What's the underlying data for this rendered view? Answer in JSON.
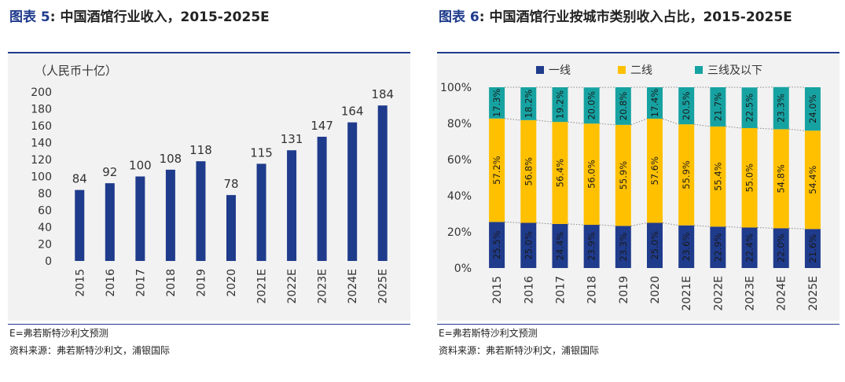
{
  "figures": {
    "left": {
      "label": "图表 5",
      "colon": ":",
      "title": "中国酒馆行业收入，2015-2025E",
      "note": "E=弗若斯特沙利文预测",
      "source": "资料来源：弗若斯特沙利文，浦银国际"
    },
    "right": {
      "label": "图表 6",
      "colon": ":",
      "title": "中国酒馆行业按城市类别收入占比，2015-2025E",
      "note": "E=弗若斯特沙利文预测",
      "source": "资料来源：弗若斯特沙利文，浦银国际"
    }
  },
  "chart_data": [
    {
      "type": "bar",
      "unit_label": "（人民币十亿）",
      "categories": [
        "2015",
        "2016",
        "2017",
        "2018",
        "2019",
        "2020",
        "2021E",
        "2022E",
        "2023E",
        "2024E",
        "2025E"
      ],
      "values": [
        84,
        92,
        100,
        108,
        118,
        78,
        115,
        131,
        147,
        164,
        184
      ],
      "ylim": [
        0,
        200
      ],
      "yticks": [
        0,
        20,
        40,
        60,
        80,
        100,
        120,
        140,
        160,
        180,
        200
      ],
      "color": "#1f3b8c",
      "grid": false,
      "data_labels": true
    },
    {
      "type": "bar",
      "stacked": true,
      "categories": [
        "2015",
        "2016",
        "2017",
        "2018",
        "2019",
        "2020",
        "2021E",
        "2022E",
        "2023E",
        "2024E",
        "2025E"
      ],
      "series": [
        {
          "name": "一线",
          "color": "#1f3b8c",
          "values": [
            25.5,
            25.0,
            24.4,
            23.9,
            23.3,
            25.0,
            23.6,
            22.9,
            22.4,
            22.0,
            21.6
          ]
        },
        {
          "name": "二线",
          "color": "#ffc000",
          "values": [
            57.2,
            56.8,
            56.4,
            56.0,
            55.9,
            57.6,
            55.9,
            55.4,
            55.0,
            54.8,
            54.4
          ]
        },
        {
          "name": "三线及以下",
          "color": "#17a2a2",
          "values": [
            17.3,
            18.2,
            19.2,
            20.0,
            20.8,
            17.4,
            20.5,
            21.7,
            22.5,
            23.3,
            24.0
          ]
        }
      ],
      "ylim": [
        0,
        100
      ],
      "yticks": [
        "0%",
        "20%",
        "40%",
        "60%",
        "80%",
        "100%"
      ],
      "value_suffix": "%",
      "legend": "top",
      "series_lines": "dotted",
      "data_labels": true
    }
  ]
}
